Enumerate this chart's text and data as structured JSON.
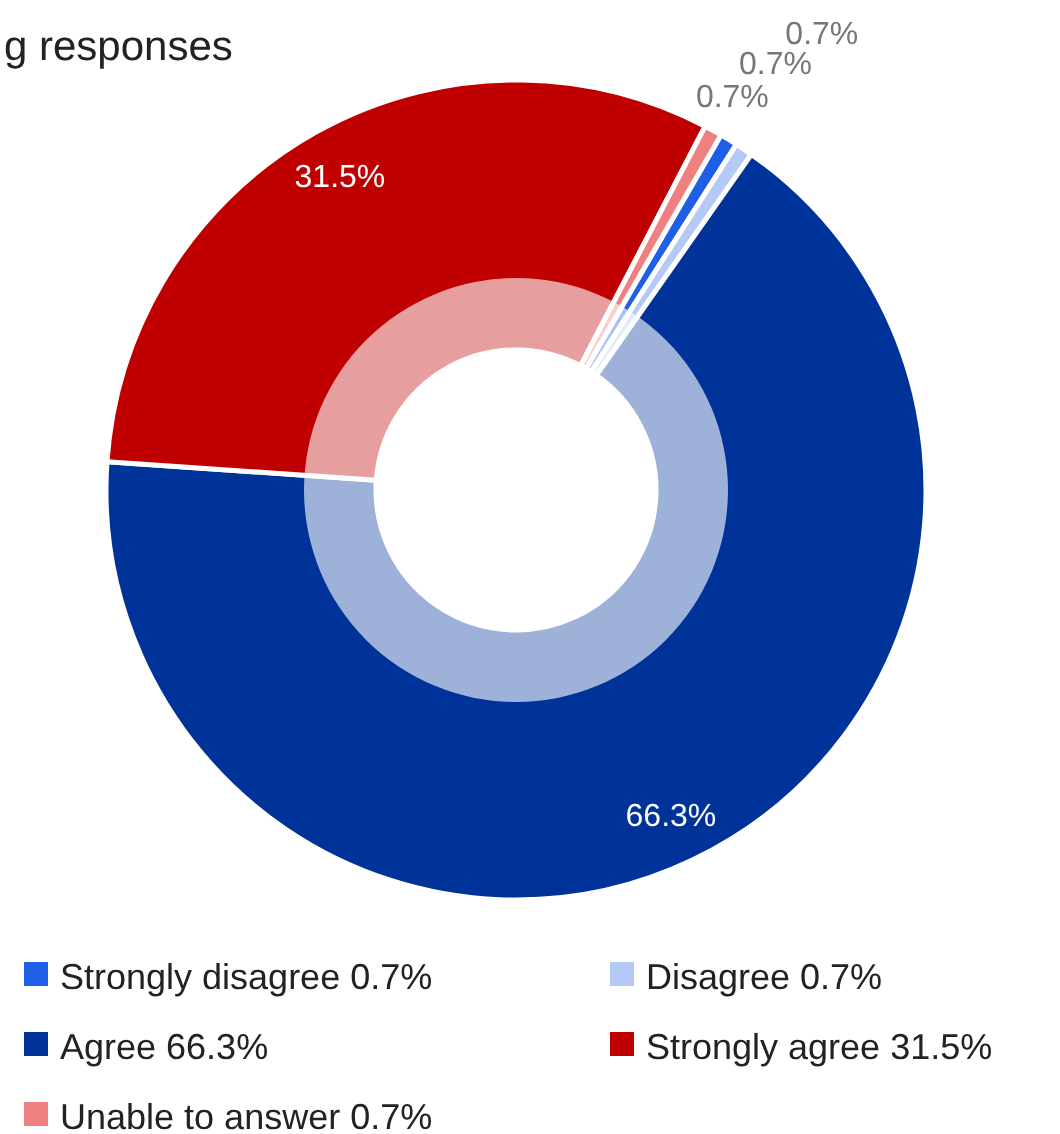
{
  "chart_data": {
    "type": "donut",
    "title": "g responses",
    "categories": [
      "Strongly disagree",
      "Disagree",
      "Agree",
      "Strongly agree",
      "Unable to answer"
    ],
    "values": [
      0.7,
      0.7,
      66.3,
      31.5,
      0.7
    ],
    "value_labels": [
      "0.7%",
      "0.7%",
      "66.3%",
      "31.5%",
      "0.7%"
    ],
    "colors": [
      "#1f5fe6",
      "#b4c9f6",
      "#00339a",
      "#c00000",
      "#ee8080"
    ],
    "legend": "bottom"
  }
}
